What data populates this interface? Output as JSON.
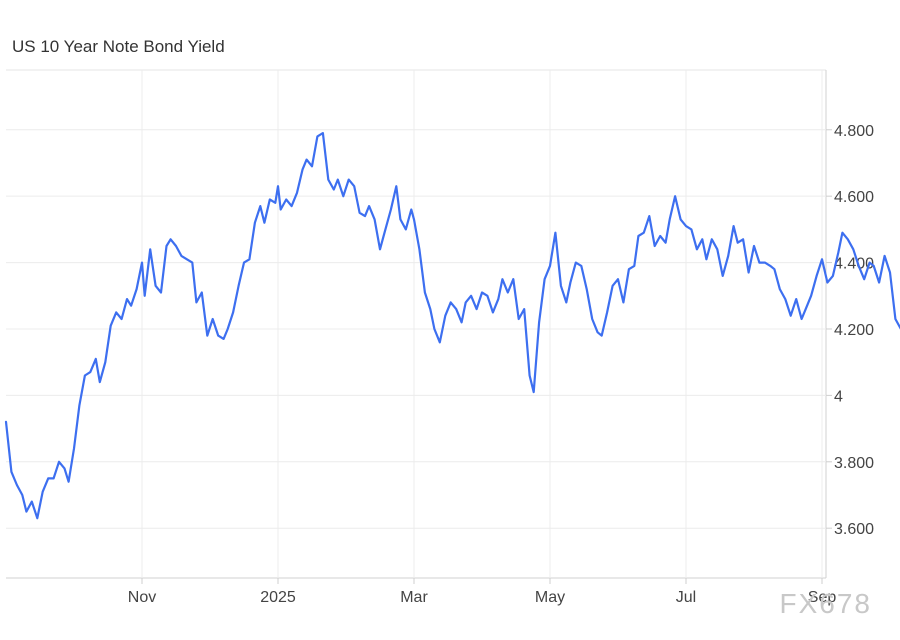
{
  "chart_data": {
    "type": "line",
    "title": "US 10 Year Note Bond Yield",
    "xlabel": "",
    "ylabel": "",
    "x_range": [
      0,
      11.3
    ],
    "x_units": "months since 2024-09-13",
    "ylim": [
      3.45,
      4.98
    ],
    "grid": true,
    "y_ticks": [
      {
        "value": 3.6,
        "label": "3.600"
      },
      {
        "value": 3.8,
        "label": "3.800"
      },
      {
        "value": 4.0,
        "label": "4"
      },
      {
        "value": 4.2,
        "label": "4.200"
      },
      {
        "value": 4.4,
        "label": "4.400"
      },
      {
        "value": 4.6,
        "label": "4.600"
      },
      {
        "value": 4.8,
        "label": "4.800"
      }
    ],
    "x_ticks": [
      {
        "value": 1.0,
        "label": "Nov"
      },
      {
        "value": 2.0,
        "label": "2025"
      },
      {
        "value": 3.0,
        "label": "Mar"
      },
      {
        "value": 4.0,
        "label": "May"
      },
      {
        "value": 5.0,
        "label": "Jul"
      },
      {
        "value": 6.0,
        "label": "Sep"
      }
    ],
    "series": [
      {
        "color": "#3d6ff0",
        "points": [
          [
            0.0,
            3.92
          ],
          [
            0.04,
            3.77
          ],
          [
            0.08,
            3.73
          ],
          [
            0.12,
            3.7
          ],
          [
            0.15,
            3.65
          ],
          [
            0.19,
            3.68
          ],
          [
            0.23,
            3.63
          ],
          [
            0.27,
            3.71
          ],
          [
            0.31,
            3.75
          ],
          [
            0.35,
            3.75
          ],
          [
            0.39,
            3.8
          ],
          [
            0.43,
            3.78
          ],
          [
            0.46,
            3.74
          ],
          [
            0.5,
            3.84
          ],
          [
            0.54,
            3.97
          ],
          [
            0.58,
            4.06
          ],
          [
            0.62,
            4.07
          ],
          [
            0.66,
            4.11
          ],
          [
            0.69,
            4.04
          ],
          [
            0.73,
            4.1
          ],
          [
            0.77,
            4.21
          ],
          [
            0.81,
            4.25
          ],
          [
            0.85,
            4.23
          ],
          [
            0.89,
            4.29
          ],
          [
            0.92,
            4.27
          ],
          [
            0.96,
            4.32
          ],
          [
            1.0,
            4.4
          ],
          [
            1.02,
            4.3
          ],
          [
            1.06,
            4.44
          ],
          [
            1.1,
            4.33
          ],
          [
            1.14,
            4.31
          ],
          [
            1.18,
            4.45
          ],
          [
            1.21,
            4.47
          ],
          [
            1.25,
            4.45
          ],
          [
            1.29,
            4.42
          ],
          [
            1.33,
            4.41
          ],
          [
            1.37,
            4.4
          ],
          [
            1.4,
            4.28
          ],
          [
            1.44,
            4.31
          ],
          [
            1.48,
            4.18
          ],
          [
            1.52,
            4.23
          ],
          [
            1.56,
            4.18
          ],
          [
            1.6,
            4.17
          ],
          [
            1.63,
            4.2
          ],
          [
            1.67,
            4.25
          ],
          [
            1.71,
            4.33
          ],
          [
            1.75,
            4.4
          ],
          [
            1.79,
            4.41
          ],
          [
            1.83,
            4.52
          ],
          [
            1.87,
            4.57
          ],
          [
            1.9,
            4.52
          ],
          [
            1.94,
            4.59
          ],
          [
            1.98,
            4.58
          ],
          [
            2.0,
            4.63
          ],
          [
            2.02,
            4.56
          ],
          [
            2.06,
            4.59
          ],
          [
            2.1,
            4.57
          ],
          [
            2.14,
            4.61
          ],
          [
            2.18,
            4.68
          ],
          [
            2.21,
            4.71
          ],
          [
            2.25,
            4.69
          ],
          [
            2.29,
            4.78
          ],
          [
            2.33,
            4.79
          ],
          [
            2.37,
            4.65
          ],
          [
            2.41,
            4.62
          ],
          [
            2.44,
            4.65
          ],
          [
            2.48,
            4.6
          ],
          [
            2.52,
            4.65
          ],
          [
            2.56,
            4.63
          ],
          [
            2.6,
            4.55
          ],
          [
            2.64,
            4.54
          ],
          [
            2.67,
            4.57
          ],
          [
            2.71,
            4.53
          ],
          [
            2.75,
            4.44
          ],
          [
            2.79,
            4.5
          ],
          [
            2.83,
            4.56
          ],
          [
            2.87,
            4.63
          ],
          [
            2.9,
            4.53
          ],
          [
            2.94,
            4.5
          ],
          [
            2.98,
            4.56
          ],
          [
            3.0,
            4.53
          ],
          [
            3.04,
            4.44
          ],
          [
            3.08,
            4.31
          ],
          [
            3.12,
            4.26
          ],
          [
            3.15,
            4.2
          ],
          [
            3.19,
            4.16
          ],
          [
            3.23,
            4.24
          ],
          [
            3.27,
            4.28
          ],
          [
            3.31,
            4.26
          ],
          [
            3.35,
            4.22
          ],
          [
            3.38,
            4.28
          ],
          [
            3.42,
            4.3
          ],
          [
            3.46,
            4.26
          ],
          [
            3.5,
            4.31
          ],
          [
            3.54,
            4.3
          ],
          [
            3.58,
            4.25
          ],
          [
            3.62,
            4.29
          ],
          [
            3.65,
            4.35
          ],
          [
            3.69,
            4.31
          ],
          [
            3.73,
            4.35
          ],
          [
            3.77,
            4.23
          ],
          [
            3.81,
            4.26
          ],
          [
            3.85,
            4.06
          ],
          [
            3.88,
            4.01
          ],
          [
            3.92,
            4.22
          ],
          [
            3.96,
            4.35
          ],
          [
            4.0,
            4.39
          ],
          [
            4.04,
            4.49
          ],
          [
            4.08,
            4.33
          ],
          [
            4.12,
            4.28
          ],
          [
            4.15,
            4.34
          ],
          [
            4.19,
            4.4
          ],
          [
            4.23,
            4.39
          ],
          [
            4.27,
            4.32
          ],
          [
            4.31,
            4.23
          ],
          [
            4.35,
            4.19
          ],
          [
            4.38,
            4.18
          ],
          [
            4.42,
            4.25
          ],
          [
            4.46,
            4.33
          ],
          [
            4.5,
            4.35
          ],
          [
            4.54,
            4.28
          ],
          [
            4.58,
            4.38
          ],
          [
            4.62,
            4.39
          ],
          [
            4.65,
            4.48
          ],
          [
            4.69,
            4.49
          ],
          [
            4.73,
            4.54
          ],
          [
            4.77,
            4.45
          ],
          [
            4.81,
            4.48
          ],
          [
            4.85,
            4.46
          ],
          [
            4.88,
            4.53
          ],
          [
            4.92,
            4.6
          ],
          [
            4.96,
            4.53
          ],
          [
            5.0,
            4.51
          ],
          [
            5.04,
            4.5
          ],
          [
            5.08,
            4.44
          ],
          [
            5.12,
            4.47
          ],
          [
            5.15,
            4.41
          ],
          [
            5.19,
            4.47
          ],
          [
            5.23,
            4.44
          ],
          [
            5.27,
            4.36
          ],
          [
            5.31,
            4.42
          ],
          [
            5.35,
            4.51
          ],
          [
            5.38,
            4.46
          ],
          [
            5.42,
            4.47
          ],
          [
            5.46,
            4.37
          ],
          [
            5.5,
            4.45
          ],
          [
            5.54,
            4.4
          ],
          [
            5.58,
            4.4
          ],
          [
            5.62,
            4.39
          ],
          [
            5.65,
            4.38
          ],
          [
            5.69,
            4.32
          ],
          [
            5.73,
            4.29
          ],
          [
            5.77,
            4.24
          ],
          [
            5.81,
            4.29
          ],
          [
            5.85,
            4.23
          ],
          [
            5.88,
            4.26
          ],
          [
            5.92,
            4.3
          ],
          [
            5.96,
            4.36
          ],
          [
            6.0,
            4.41
          ],
          [
            6.04,
            4.34
          ],
          [
            6.08,
            4.36
          ],
          [
            6.12,
            4.43
          ],
          [
            6.15,
            4.49
          ],
          [
            6.19,
            4.47
          ],
          [
            6.23,
            4.44
          ],
          [
            6.27,
            4.39
          ],
          [
            6.31,
            4.35
          ],
          [
            6.35,
            4.4
          ],
          [
            6.38,
            4.39
          ],
          [
            6.42,
            4.34
          ],
          [
            6.46,
            4.42
          ],
          [
            6.5,
            4.37
          ],
          [
            6.54,
            4.23
          ],
          [
            6.58,
            4.2
          ],
          [
            6.62,
            4.22
          ],
          [
            6.65,
            4.25
          ],
          [
            6.69,
            4.29
          ],
          [
            6.73,
            4.29
          ],
          [
            6.77,
            4.3
          ],
          [
            6.81,
            4.25
          ],
          [
            6.85,
            4.3
          ],
          [
            6.88,
            4.33
          ],
          [
            6.92,
            4.34
          ],
          [
            6.96,
            4.32
          ],
          [
            7.0,
            4.33
          ],
          [
            7.04,
            4.27
          ],
          [
            7.08,
            4.28
          ],
          [
            7.12,
            4.27
          ],
          [
            7.15,
            4.24
          ],
          [
            7.19,
            4.22
          ],
          [
            7.23,
            4.24
          ]
        ]
      }
    ],
    "annotations": [
      "FX678"
    ]
  }
}
